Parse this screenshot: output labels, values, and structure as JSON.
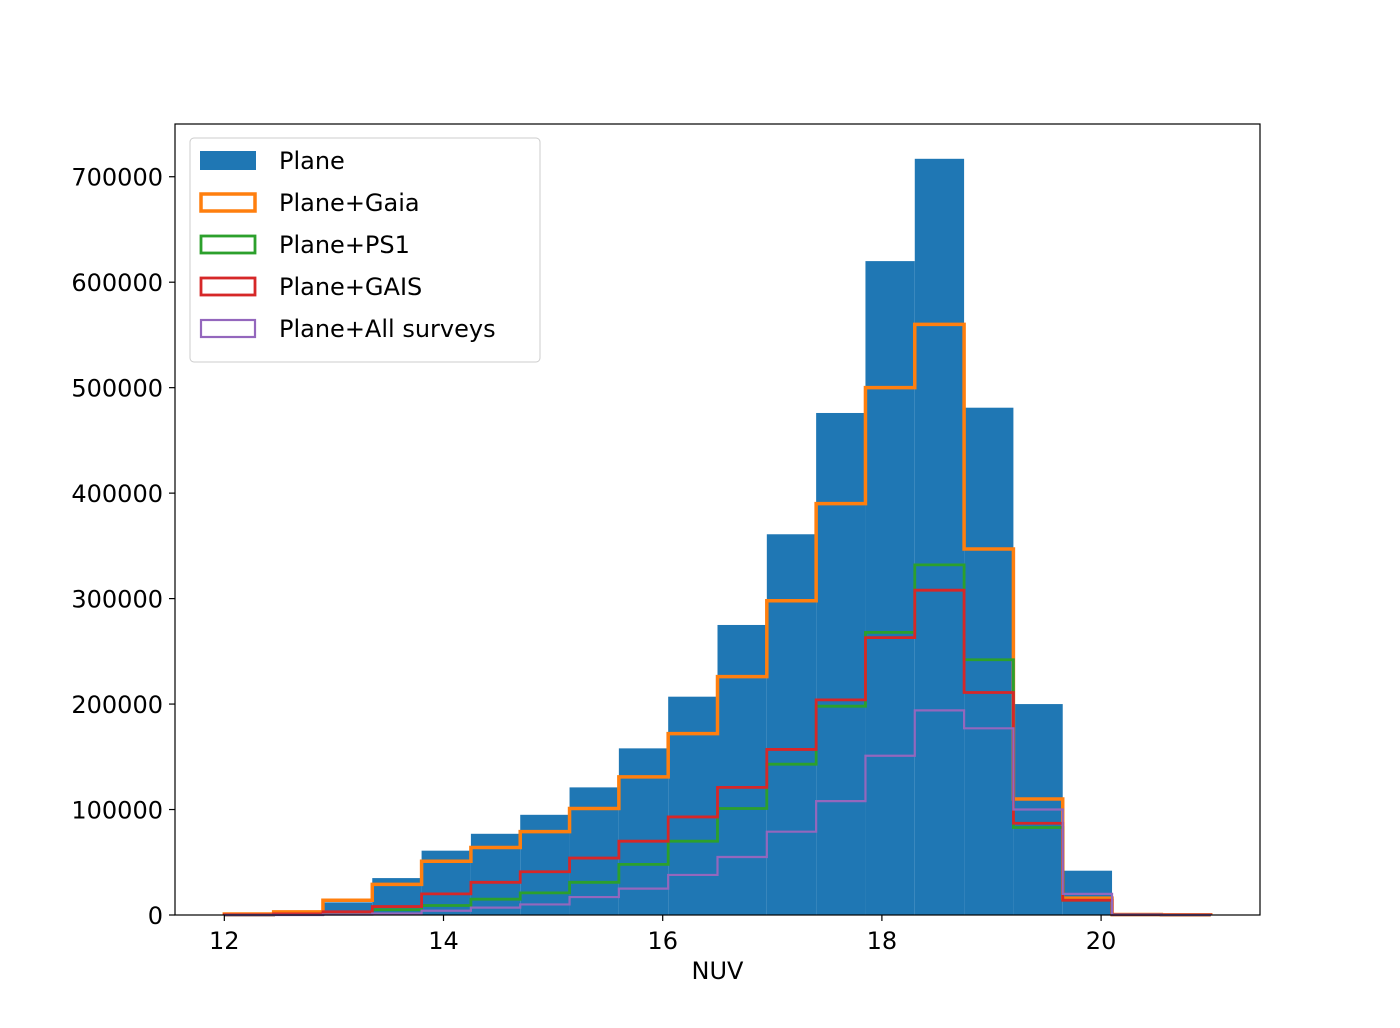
{
  "chart_data": {
    "type": "bar",
    "xlabel": "NUV",
    "ylabel": "",
    "title": "",
    "xlim": [
      11.55,
      21.45
    ],
    "ylim": [
      0,
      750000
    ],
    "xticks": [
      12,
      14,
      16,
      18,
      20
    ],
    "yticks": [
      0,
      100000,
      200000,
      300000,
      400000,
      500000,
      600000,
      700000
    ],
    "bin_edges": [
      12.0,
      12.45,
      12.9,
      13.35,
      13.8,
      14.25,
      14.7,
      15.15,
      15.6,
      16.05,
      16.5,
      16.95,
      17.4,
      17.85,
      18.3,
      18.75,
      19.2,
      19.65,
      20.1,
      20.55,
      21.0
    ],
    "legend_position": "upper left",
    "series": [
      {
        "name": "Plane",
        "style": "filled",
        "color": "#1f77b4",
        "values": [
          1000,
          3000,
          12000,
          35000,
          61000,
          77000,
          95000,
          121000,
          158000,
          207000,
          275000,
          361000,
          476000,
          620000,
          717000,
          481000,
          200000,
          42000,
          1000,
          500
        ]
      },
      {
        "name": "Plane+Gaia",
        "style": "step",
        "color": "#ff7f0e",
        "values": [
          1000,
          3000,
          14000,
          29000,
          51000,
          64000,
          79000,
          101000,
          131000,
          172000,
          226000,
          298000,
          390000,
          500000,
          560000,
          347000,
          110000,
          16000,
          500,
          200
        ]
      },
      {
        "name": "Plane+PS1",
        "style": "step",
        "color": "#2ca02c",
        "values": [
          0,
          500,
          1500,
          5000,
          9000,
          15000,
          21000,
          31000,
          48000,
          70000,
          101000,
          143000,
          198000,
          268000,
          332000,
          242000,
          83000,
          14000,
          300,
          100
        ]
      },
      {
        "name": "Plane+GAIS",
        "style": "step",
        "color": "#d62728",
        "values": [
          200,
          1000,
          3000,
          8000,
          20000,
          31000,
          41000,
          54000,
          70000,
          93000,
          121000,
          157000,
          204000,
          263000,
          308000,
          211000,
          87000,
          14000,
          300,
          100
        ]
      },
      {
        "name": "Plane+All surveys",
        "style": "step",
        "color": "#9467bd",
        "values": [
          0,
          0,
          500,
          1500,
          4000,
          7000,
          10000,
          17000,
          25000,
          38000,
          55000,
          79000,
          108000,
          151000,
          194000,
          177000,
          100000,
          20000,
          300,
          100
        ]
      }
    ]
  }
}
